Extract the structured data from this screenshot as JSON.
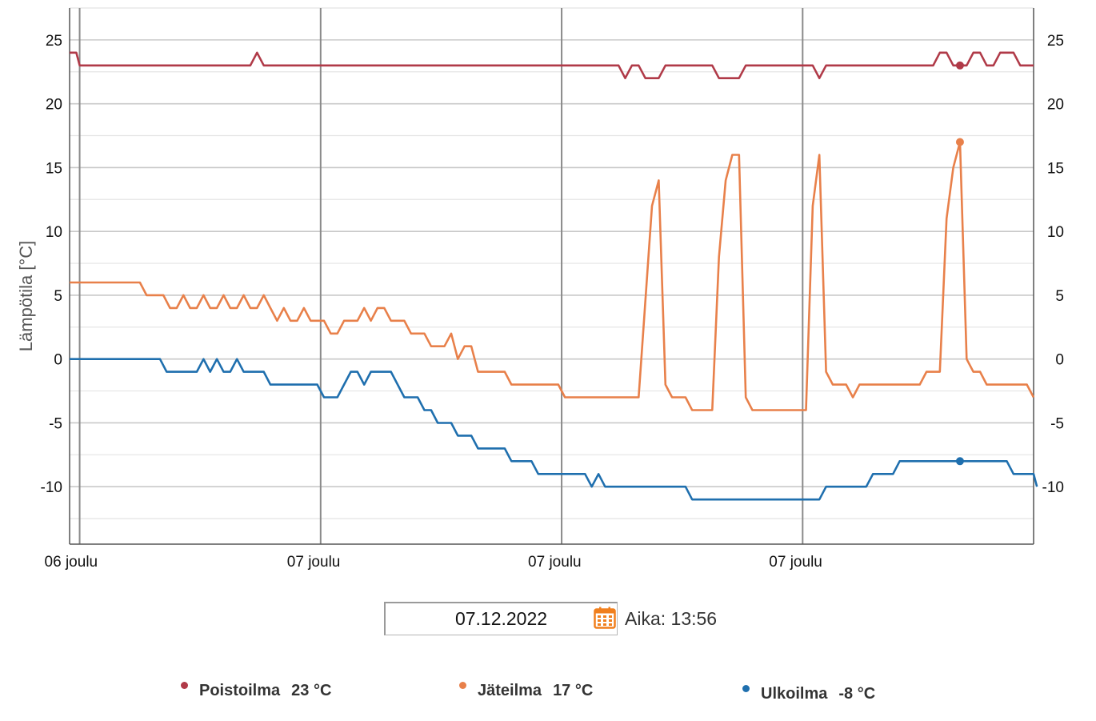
{
  "chart_data": {
    "type": "line",
    "ylabel": "Lämpötila [°C]",
    "ylim": [
      -14.5,
      27.5
    ],
    "yticks": [
      25,
      20,
      15,
      10,
      5,
      0,
      -5,
      -10
    ],
    "x_range": [
      0,
      144
    ],
    "x_ticks": [
      {
        "x": 1.5,
        "label": "06 joulu"
      },
      {
        "x": 37.5,
        "label": "07 joulu"
      },
      {
        "x": 73.5,
        "label": "07 joulu"
      },
      {
        "x": 109.5,
        "label": "07 joulu"
      }
    ],
    "series": [
      {
        "name": "Poistoilma",
        "color": "#b03a48",
        "marker": [
          133,
          23
        ],
        "points": [
          [
            0,
            24
          ],
          [
            1,
            24
          ],
          [
            1.5,
            23
          ],
          [
            27,
            23
          ],
          [
            28,
            24
          ],
          [
            29,
            23
          ],
          [
            82,
            23
          ],
          [
            83,
            22
          ],
          [
            84,
            23
          ],
          [
            85,
            23
          ],
          [
            86,
            22
          ],
          [
            88,
            22
          ],
          [
            89,
            23
          ],
          [
            96,
            23
          ],
          [
            97,
            22
          ],
          [
            100,
            22
          ],
          [
            101,
            23
          ],
          [
            111,
            23
          ],
          [
            112,
            22
          ],
          [
            113,
            23
          ],
          [
            129,
            23
          ],
          [
            130,
            24
          ],
          [
            131,
            24
          ],
          [
            132,
            23
          ],
          [
            134,
            23
          ],
          [
            135,
            24
          ],
          [
            136,
            24
          ],
          [
            137,
            23
          ],
          [
            138,
            23
          ],
          [
            139,
            24
          ],
          [
            141,
            24
          ],
          [
            142,
            23
          ],
          [
            144,
            23
          ]
        ]
      },
      {
        "name": "Jäteilma",
        "color": "#e8804a",
        "marker": [
          133,
          17
        ],
        "points": [
          [
            0,
            6
          ],
          [
            10.5,
            6
          ],
          [
            11.5,
            5
          ],
          [
            14,
            5
          ],
          [
            15,
            4
          ],
          [
            16,
            4
          ],
          [
            17,
            5
          ],
          [
            18,
            4
          ],
          [
            19,
            4
          ],
          [
            20,
            5
          ],
          [
            21,
            4
          ],
          [
            22,
            4
          ],
          [
            23,
            5
          ],
          [
            24,
            4
          ],
          [
            25,
            4
          ],
          [
            26,
            5
          ],
          [
            27,
            4
          ],
          [
            28,
            4
          ],
          [
            29,
            5
          ],
          [
            30,
            4
          ],
          [
            31,
            3
          ],
          [
            32,
            4
          ],
          [
            33,
            3
          ],
          [
            34,
            3
          ],
          [
            35,
            4
          ],
          [
            36,
            3
          ],
          [
            38,
            3
          ],
          [
            39,
            2
          ],
          [
            40,
            2
          ],
          [
            41,
            3
          ],
          [
            43,
            3
          ],
          [
            44,
            4
          ],
          [
            45,
            3
          ],
          [
            46,
            4
          ],
          [
            47,
            4
          ],
          [
            48,
            3
          ],
          [
            50,
            3
          ],
          [
            51,
            2
          ],
          [
            53,
            2
          ],
          [
            54,
            1
          ],
          [
            56,
            1
          ],
          [
            57,
            2
          ],
          [
            58,
            0
          ],
          [
            59,
            1
          ],
          [
            60,
            1
          ],
          [
            61,
            -1
          ],
          [
            65,
            -1
          ],
          [
            66,
            -2
          ],
          [
            73,
            -2
          ],
          [
            74,
            -3
          ],
          [
            85,
            -3
          ],
          [
            87,
            12
          ],
          [
            88,
            14
          ],
          [
            89,
            -2
          ],
          [
            90,
            -3
          ],
          [
            92,
            -3
          ],
          [
            93,
            -4
          ],
          [
            96,
            -4
          ],
          [
            97,
            8
          ],
          [
            98,
            14
          ],
          [
            99,
            16
          ],
          [
            100,
            16
          ],
          [
            101,
            -3
          ],
          [
            102,
            -4
          ],
          [
            110,
            -4
          ],
          [
            111,
            12
          ],
          [
            112,
            16
          ],
          [
            113,
            -1
          ],
          [
            114,
            -2
          ],
          [
            116,
            -2
          ],
          [
            117,
            -3
          ],
          [
            118,
            -2
          ],
          [
            127,
            -2
          ],
          [
            128,
            -1
          ],
          [
            130,
            -1
          ],
          [
            131,
            11
          ],
          [
            132,
            15
          ],
          [
            133,
            17
          ],
          [
            134,
            0
          ],
          [
            135,
            -1
          ],
          [
            136,
            -1
          ],
          [
            137,
            -2
          ],
          [
            143,
            -2
          ],
          [
            144,
            -3
          ]
        ]
      },
      {
        "name": "Ulkoilma",
        "color": "#1f6fae",
        "marker": [
          133,
          -8
        ],
        "points": [
          [
            0,
            0
          ],
          [
            13.5,
            0
          ],
          [
            14.5,
            -1
          ],
          [
            19,
            -1
          ],
          [
            20,
            0
          ],
          [
            21,
            -1
          ],
          [
            22,
            0
          ],
          [
            23,
            -1
          ],
          [
            24,
            -1
          ],
          [
            25,
            0
          ],
          [
            26,
            -1
          ],
          [
            29,
            -1
          ],
          [
            30,
            -2
          ],
          [
            37,
            -2
          ],
          [
            38,
            -3
          ],
          [
            40,
            -3
          ],
          [
            42,
            -1
          ],
          [
            43,
            -1
          ],
          [
            44,
            -2
          ],
          [
            45,
            -1
          ],
          [
            48,
            -1
          ],
          [
            50,
            -3
          ],
          [
            52,
            -3
          ],
          [
            53,
            -4
          ],
          [
            54,
            -4
          ],
          [
            55,
            -5
          ],
          [
            57,
            -5
          ],
          [
            58,
            -6
          ],
          [
            60,
            -6
          ],
          [
            61,
            -7
          ],
          [
            65,
            -7
          ],
          [
            66,
            -8
          ],
          [
            69,
            -8
          ],
          [
            70,
            -9
          ],
          [
            77,
            -9
          ],
          [
            78,
            -10
          ],
          [
            79,
            -9
          ],
          [
            80,
            -10
          ],
          [
            92,
            -10
          ],
          [
            93,
            -11
          ],
          [
            112,
            -11
          ],
          [
            113,
            -10
          ],
          [
            119,
            -10
          ],
          [
            120,
            -9
          ],
          [
            123,
            -9
          ],
          [
            124,
            -8
          ],
          [
            140,
            -8
          ],
          [
            141,
            -9
          ],
          [
            144,
            -9
          ],
          [
            144.5,
            -10
          ]
        ]
      }
    ]
  },
  "controls": {
    "date_value": "07.12.2022",
    "calendar_icon": "calendar-icon",
    "time_label": "Aika: 13:56"
  },
  "legend": [
    {
      "name": "Poistoilma",
      "value": "23 °C",
      "color": "#b03a48"
    },
    {
      "name": "Jäteilma",
      "value": "17 °C",
      "color": "#e8804a"
    },
    {
      "name": "Ulkoilma",
      "value": "-8 °C",
      "color": "#1f6fae"
    }
  ]
}
